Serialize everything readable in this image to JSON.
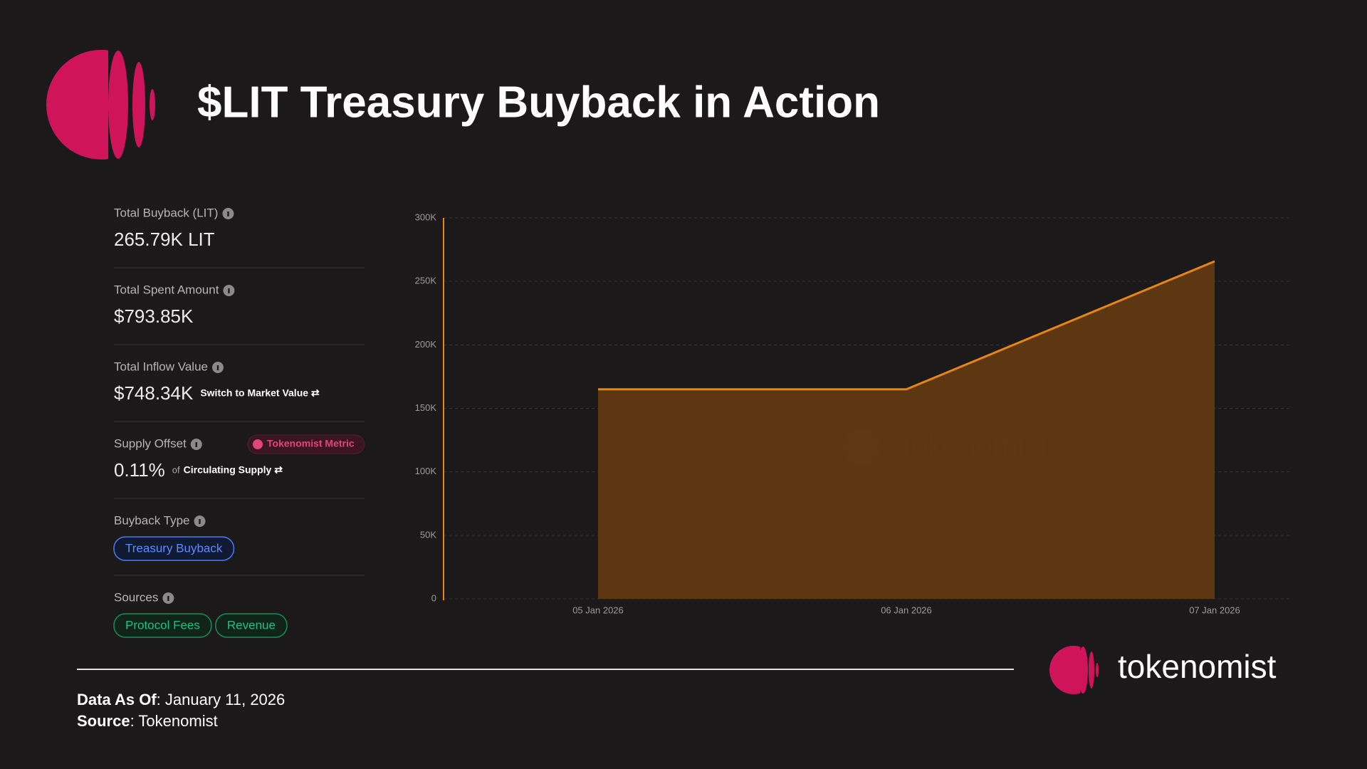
{
  "header": {
    "title": "$LIT Treasury Buyback in Action"
  },
  "stats": [
    {
      "label": "Total Buyback (LIT)",
      "value": "265.79K LIT"
    },
    {
      "label": "Total Spent Amount",
      "value": "$793.85K"
    },
    {
      "label": "Total Inflow Value",
      "value": "$748.34K",
      "action": "Switch to Market Value ⇄"
    },
    {
      "label": "Supply Offset",
      "badge": "Tokenomist Metric",
      "value": "0.11%",
      "note_prefix": "of",
      "note": "Circulating Supply ⇄"
    },
    {
      "label": "Buyback Type",
      "tags": [
        "Treasury Buyback"
      ]
    },
    {
      "label": "Sources",
      "tags": [
        "Protocol Fees",
        "Revenue"
      ]
    }
  ],
  "chart_data": {
    "type": "area",
    "watermark": "tokenomist",
    "categories": [
      "05 Jan 2026",
      "06 Jan 2026",
      "07 Jan 2026"
    ],
    "values": [
      165000,
      165000,
      265790
    ],
    "color": "#e8860f",
    "fill": "#603912",
    "ylim": [
      0,
      300000
    ],
    "yticks": [
      0,
      {
        "value": 50000,
        "label": "50K"
      },
      {
        "value": 100000,
        "label": "100K"
      },
      {
        "value": 150000,
        "label": "150K"
      },
      {
        "value": 200000,
        "label": "200K"
      },
      {
        "value": 250000,
        "label": "250K"
      },
      {
        "value": 300000,
        "label": "300K"
      }
    ],
    "grid": true
  },
  "footer": {
    "date_label": "Data As Of",
    "date_value": ": January 11, 2026",
    "source_label": "Source",
    "source_value": ": Tokenomist",
    "brand": "tokenomist"
  }
}
